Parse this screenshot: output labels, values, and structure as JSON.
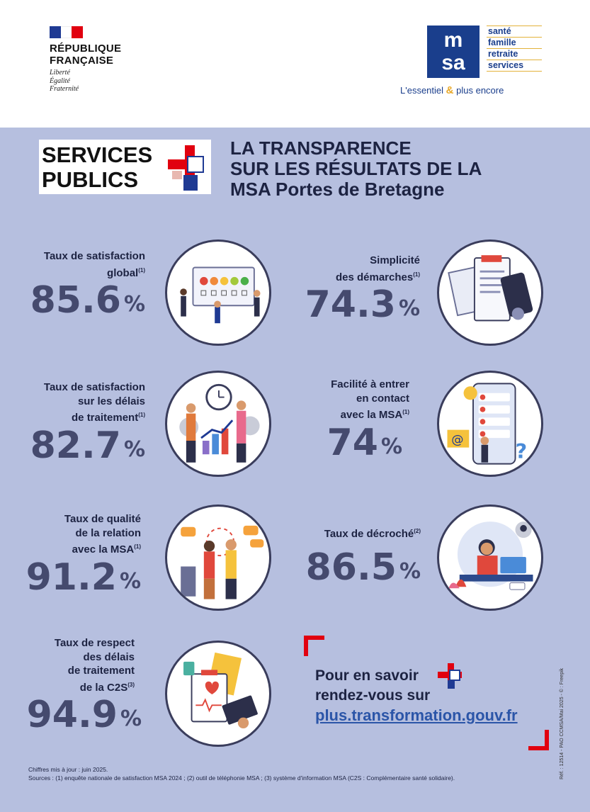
{
  "header": {
    "republique_line1": "RÉPUBLIQUE",
    "republique_line2": "FRANÇAISE",
    "motto": [
      "Liberté",
      "Égalité",
      "Fraternité"
    ],
    "msa_logo": {
      "mark_line1": "m",
      "mark_line2": "sa",
      "items": [
        "santé",
        "famille",
        "retraite",
        "services"
      ],
      "tagline_start": "L'essentiel",
      "tagline_amp": "&",
      "tagline_end": "plus encore"
    }
  },
  "badge": {
    "line1": "SERVICES",
    "line2": "PUBLICS"
  },
  "title": {
    "line1": "LA TRANSPARENCE",
    "line2": "SUR LES RÉSULTATS DE LA",
    "line3": "MSA Portes de Bretagne"
  },
  "kpis": [
    {
      "label_lines": [
        "Taux de satisfaction",
        "global"
      ],
      "note": "(1)",
      "value": "85.6",
      "unit": "%"
    },
    {
      "label_lines": [
        "Simplicité",
        "des démarches"
      ],
      "note": "(1)",
      "value": "74.3",
      "unit": "%"
    },
    {
      "label_lines": [
        "Taux de satisfaction",
        "sur les délais",
        "de traitement"
      ],
      "note": "(1)",
      "value": "82.7",
      "unit": "%"
    },
    {
      "label_lines": [
        "Facilité à entrer",
        "en contact",
        "avec la MSA"
      ],
      "note": "(1)",
      "value": "74",
      "unit": "%"
    },
    {
      "label_lines": [
        "Taux de qualité",
        "de la relation",
        "avec la MSA"
      ],
      "note": "(1)",
      "value": "91.2",
      "unit": "%"
    },
    {
      "label_lines": [
        "Taux de décroché"
      ],
      "note": "(2)",
      "value": "86.5",
      "unit": "%"
    },
    {
      "label_lines": [
        "Taux de respect",
        "des délais",
        "de traitement",
        "de la C2S"
      ],
      "note": "(3)",
      "value": "94.9",
      "unit": "%"
    }
  ],
  "cta": {
    "line1": "Pour en savoir",
    "line2": "rendez-vous sur",
    "link": "plus.transformation.gouv.fr"
  },
  "footer": {
    "update": "Chiffres mis à jour : juin 2025.",
    "sources": "Sources : (1) enquête nationale de satisfaction MSA 2024 ; (2) outil de téléphonie MSA ; (3) système d'information MSA (C2S : Complémentaire santé solidaire).",
    "reference": "Réf. : 12514 - PAO CCMSA/Mai 2025 - © : Freepik"
  },
  "colors": {
    "background": "#b6bfdf",
    "text_dark": "#1d2342",
    "value": "#454a6e",
    "accent_red": "#e1000f",
    "msa_blue": "#1a3e8c",
    "msa_gold": "#e3b23a",
    "link": "#2b55a8"
  },
  "icons": [
    "french-flag-icon",
    "msa-logo-icon",
    "services-publics-cross-icon",
    "corner-bracket-icon"
  ]
}
